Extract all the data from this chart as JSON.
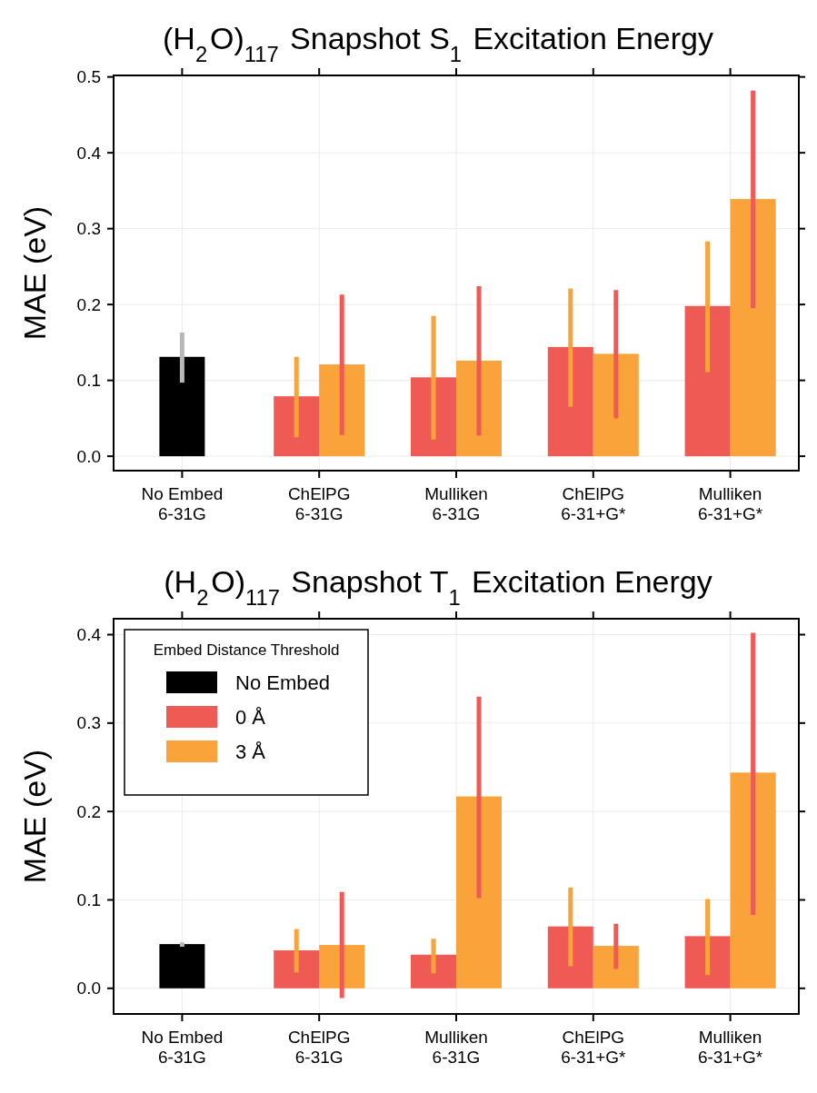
{
  "chart_data": [
    {
      "type": "bar",
      "title": "(H$_{2}$O)$_{117}$ Snapshot S$_{1}$ Excitation Energy",
      "ylabel": "MAE (eV)",
      "categories": [
        "No Embed\n6-31G",
        "ChElPG\n6-31G",
        "Mulliken\n6-31G",
        "ChElPG\n6-31+G*",
        "Mulliken\n6-31+G*"
      ],
      "ylim": [
        -0.019,
        0.502
      ],
      "yticks": [
        {
          "value": 0,
          "label": "0.0"
        },
        0.1,
        0.2,
        0.3,
        0.4,
        0.5
      ],
      "grid": true,
      "legend": false,
      "series": [
        {
          "color": "#000000",
          "values": [
            0.131,
            null,
            null,
            null,
            null
          ],
          "errors": [
            [
              0.097,
              0.163
            ],
            null,
            null,
            null,
            null
          ]
        },
        {
          "color": "#f05a55",
          "values": [
            null,
            0.079,
            0.104,
            0.144,
            0.198
          ],
          "errors": [
            null,
            [
              0.025,
              0.131
            ],
            [
              0.022,
              0.185
            ],
            [
              0.065,
              0.221
            ],
            [
              0.111,
              0.283
            ]
          ]
        },
        {
          "color": "#f9a33a",
          "values": [
            null,
            0.121,
            0.126,
            0.135,
            0.339
          ],
          "errors": [
            null,
            [
              0.028,
              0.213
            ],
            [
              0.027,
              0.224
            ],
            [
              0.05,
              0.219
            ],
            [
              0.195,
              0.482
            ]
          ]
        }
      ]
    },
    {
      "type": "bar",
      "title": "(H$_{2}$O)$_{117}$ Snapshot T$_{1}$ Excitation Energy",
      "ylabel": "MAE (eV)",
      "legend_title": "Embed Distance Threshold",
      "categories": [
        "No Embed\n6-31G",
        "ChElPG\n6-31G",
        "Mulliken\n6-31G",
        "ChElPG\n6-31+G*",
        "Mulliken\n6-31+G*"
      ],
      "ylim": [
        -0.029,
        0.418
      ],
      "yticks": [
        {
          "value": 0,
          "label": "0.0"
        },
        0.1,
        0.2,
        0.3,
        0.4
      ],
      "grid": true,
      "legend": "top left",
      "series": [
        {
          "name": "No Embed",
          "color": "#000000",
          "values": [
            0.05,
            null,
            null,
            null,
            null
          ],
          "errors": [
            [
              0.047,
              0.052
            ],
            null,
            null,
            null,
            null
          ]
        },
        {
          "name": "0 Å",
          "color": "#f05a55",
          "values": [
            null,
            0.043,
            0.038,
            0.07,
            0.059
          ],
          "errors": [
            null,
            [
              0.018,
              0.067
            ],
            [
              0.017,
              0.056
            ],
            [
              0.025,
              0.114
            ],
            [
              0.015,
              0.101
            ]
          ]
        },
        {
          "name": "3 Å",
          "color": "#f9a33a",
          "values": [
            null,
            0.049,
            0.217,
            0.048,
            0.244
          ],
          "errors": [
            null,
            [
              -0.011,
              0.109
            ],
            [
              0.102,
              0.33
            ],
            [
              0.022,
              0.073
            ],
            [
              0.083,
              0.402
            ]
          ]
        }
      ]
    }
  ]
}
